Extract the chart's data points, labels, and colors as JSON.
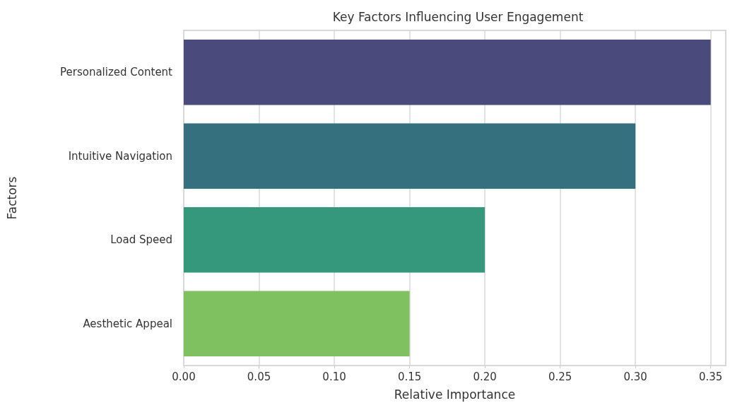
{
  "chart_data": {
    "type": "bar",
    "orientation": "horizontal",
    "title": "Key Factors Influencing User Engagement",
    "xlabel": "Relative Importance",
    "ylabel": "Factors",
    "categories": [
      "Personalized Content",
      "Intuitive Navigation",
      "Load Speed",
      "Aesthetic Appeal"
    ],
    "values": [
      0.35,
      0.3,
      0.2,
      0.15
    ],
    "colors": [
      "#4a4a7c",
      "#35707e",
      "#35977b",
      "#7fc161"
    ],
    "xlim": [
      0,
      0.36
    ],
    "xticks": [
      {
        "value": 0,
        "label": "0.00"
      },
      {
        "value": 0.05,
        "label": "0.05"
      },
      {
        "value": 0.1,
        "label": "0.10"
      },
      {
        "value": 0.15,
        "label": "0.15"
      },
      {
        "value": 0.2,
        "label": "0.20"
      },
      {
        "value": 0.25,
        "label": "0.25"
      },
      {
        "value": 0.3,
        "label": "0.30"
      },
      {
        "value": 0.35,
        "label": "0.35"
      }
    ],
    "grid": "x"
  }
}
